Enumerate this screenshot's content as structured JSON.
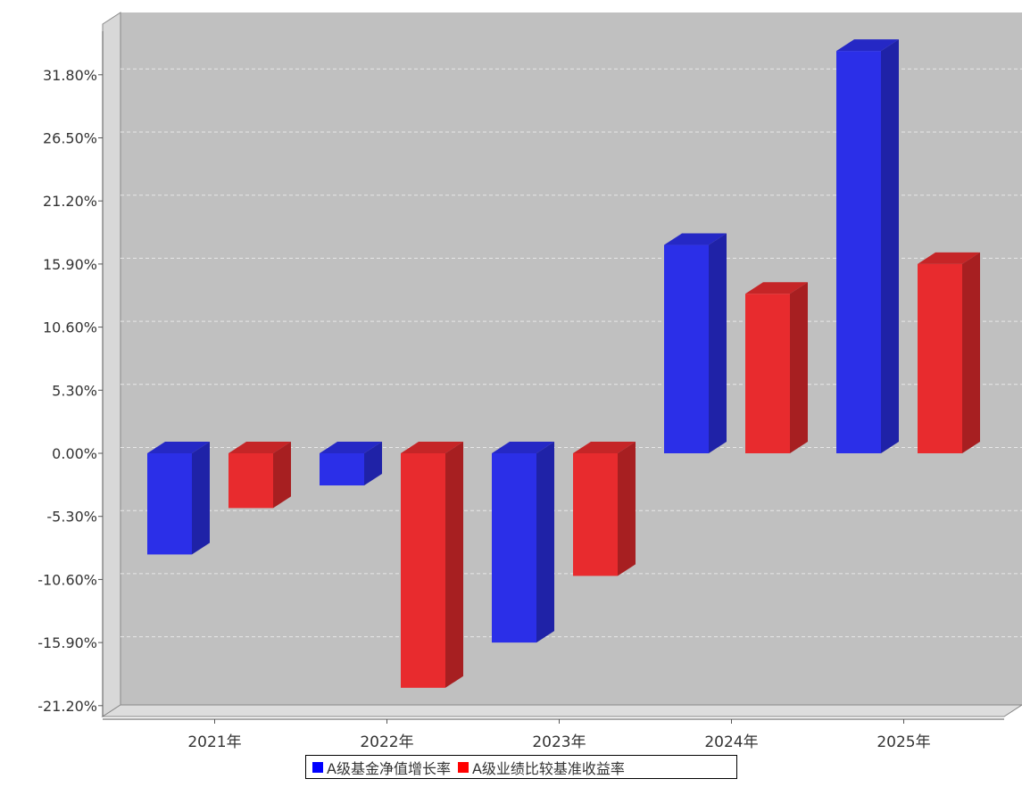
{
  "chart_data": {
    "type": "bar",
    "categories": [
      "2021年",
      "2022年",
      "2023年",
      "2024年",
      "2025年"
    ],
    "series": [
      {
        "name": "A级基金净值增长率",
        "values": [
          -8.5,
          -2.7,
          -15.9,
          17.5,
          33.8
        ],
        "color": "#2b2fe8"
      },
      {
        "name": "A级业绩比较基准收益率",
        "values": [
          -4.6,
          -19.7,
          -10.3,
          13.4,
          15.9
        ],
        "color": "#e82b2e"
      }
    ],
    "y_ticks": [
      "31.80%",
      "26.50%",
      "21.20%",
      "15.90%",
      "10.60%",
      "5.30%",
      "0.00%",
      "-5.30%",
      "-10.60%",
      "-15.90%",
      "-21.20%"
    ],
    "y_tick_values": [
      31.8,
      26.5,
      21.2,
      15.9,
      10.6,
      5.3,
      0.0,
      -5.3,
      -10.6,
      -15.9,
      -21.2
    ],
    "ylim": [
      -21.2,
      35.0
    ],
    "grid": true,
    "legend_position": "bottom-center",
    "plot_background": "#c0c0c0"
  }
}
